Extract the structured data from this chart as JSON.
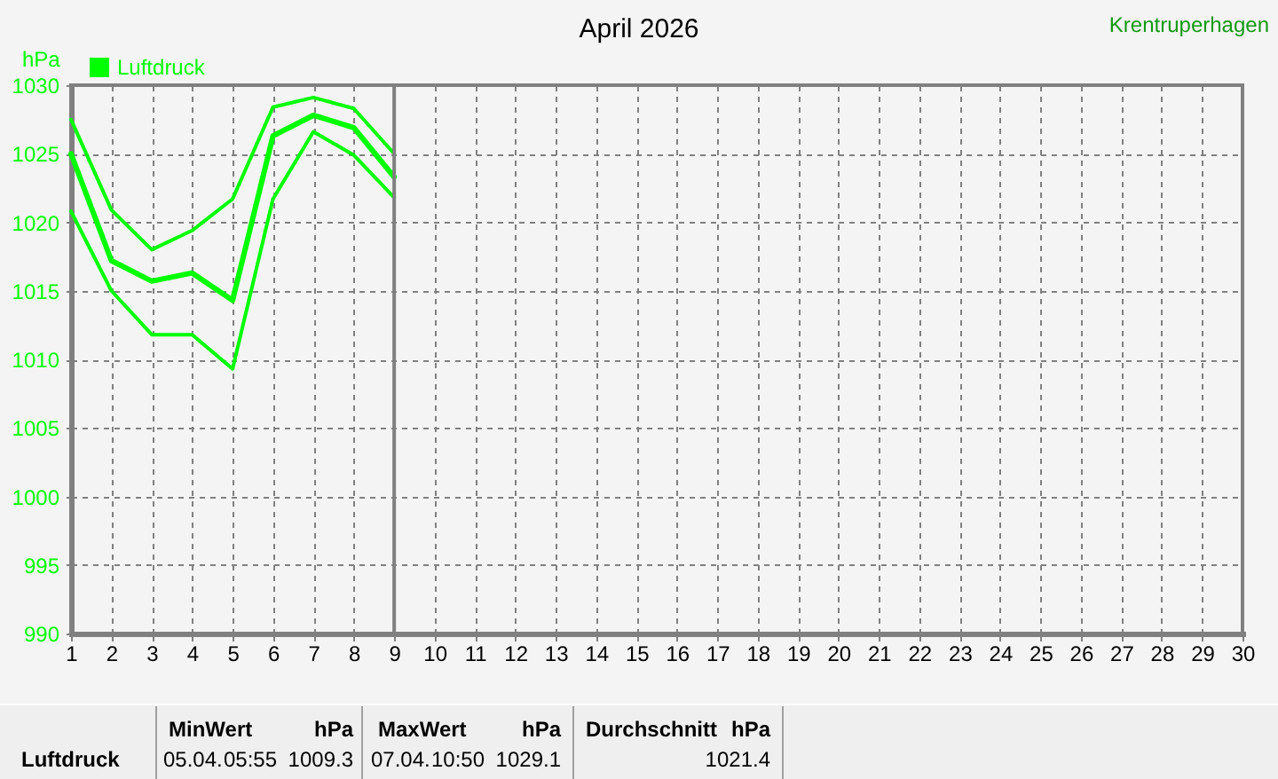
{
  "chart_data": {
    "type": "line",
    "title": "April 2026",
    "subtitle": "Krentruperhagen",
    "ylabel": "hPa",
    "x": [
      1,
      2,
      3,
      4,
      5,
      6,
      7,
      8,
      9
    ],
    "series": [
      {
        "name": "Luftdruck",
        "color": "#00ff00",
        "values": [
          1025.0,
          1017.2,
          1015.7,
          1016.3,
          1014.3,
          1026.3,
          1027.8,
          1026.9,
          1023.3
        ]
      },
      {
        "color": "#00ff00",
        "values": [
          1027.5,
          1020.9,
          1018.0,
          1019.4,
          1021.7,
          1028.4,
          1029.1,
          1028.3,
          1025.0
        ]
      },
      {
        "color": "#00ff00",
        "values": [
          1020.8,
          1015.0,
          1011.8,
          1011.8,
          1009.3,
          1021.7,
          1026.6,
          1024.9,
          1021.8
        ]
      }
    ],
    "xlim": [
      1,
      30
    ],
    "xticks": [
      1,
      2,
      3,
      4,
      5,
      6,
      7,
      8,
      9,
      10,
      11,
      12,
      13,
      14,
      15,
      16,
      17,
      18,
      19,
      20,
      21,
      22,
      23,
      24,
      25,
      26,
      27,
      28,
      29,
      30
    ],
    "ylim": [
      990,
      1030
    ],
    "yticks": [
      990,
      995,
      1000,
      1005,
      1010,
      1015,
      1020,
      1025,
      1030
    ],
    "grid": true,
    "legend": "top left",
    "ref_lines": [
      {
        "axis": "x",
        "value": 9,
        "color": "#808080"
      }
    ],
    "annotations": [
      "Luftdruck",
      "MinWert",
      "hPa",
      "05.04.",
      "05:55",
      "1009.3",
      "MaxWert",
      "hPa",
      "07.04.",
      "10:50",
      "1029.1",
      "Durchschnitt",
      "hPa",
      "1021.4"
    ]
  }
}
